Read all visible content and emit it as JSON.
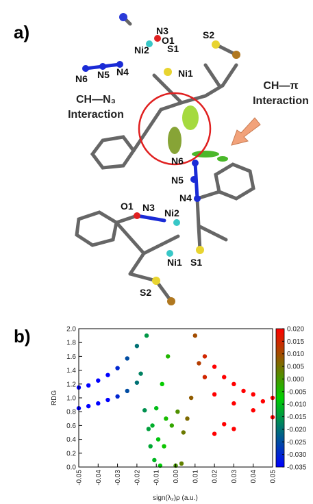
{
  "panel_a": {
    "label": "a)",
    "atom_labels_top": [
      "N3",
      "O1",
      "Ni2",
      "S1",
      "S2",
      "N6",
      "N5",
      "N4",
      "Ni1"
    ],
    "atom_labels_bottom": [
      "N6",
      "N5",
      "N4",
      "O1",
      "N3",
      "Ni2",
      "Ni1",
      "S1",
      "S2"
    ],
    "annotation_ch_n3": [
      "CH—N₃",
      "Interaction"
    ],
    "annotation_ch_pi": [
      "CH—π",
      "Interaction"
    ]
  },
  "panel_b": {
    "label": "b)"
  },
  "chart_data": {
    "type": "scatter",
    "x_label": "sign(λ₂)ρ (a.u.)",
    "y_label": "RDG",
    "xlim": [
      -0.05,
      0.05
    ],
    "ylim": [
      0,
      2
    ],
    "xticks": [
      -0.05,
      -0.04,
      -0.03,
      -0.02,
      -0.01,
      {
        "value": 0,
        "label": "0.00"
      },
      0.01,
      0.02,
      0.03,
      0.04,
      0.05
    ],
    "yticks": [
      {
        "value": 0,
        "label": "0.0"
      },
      0.2,
      0.4,
      0.6,
      0.8,
      {
        "value": 1,
        "label": "1.0"
      },
      1.2,
      1.4,
      1.6,
      1.8,
      {
        "value": 2,
        "label": "2.0"
      }
    ],
    "colorbar": {
      "lim": [
        -0.035,
        0.02
      ],
      "ticks": [
        {
          "value": 0.02,
          "label": "0.020"
        },
        0.015,
        {
          "value": 0.01,
          "label": "0.010"
        },
        0.005,
        {
          "value": 0,
          "label": "0.000"
        },
        -0.005,
        {
          "value": -0.01,
          "label": "-0.010"
        },
        -0.015,
        {
          "value": -0.02,
          "label": "-0.020"
        },
        -0.025,
        {
          "value": -0.03,
          "label": "-0.030"
        },
        -0.035
      ],
      "colorscale": [
        "#0000ff",
        "#00d000",
        "#ff0000"
      ]
    },
    "x": [
      -0.05,
      -0.05,
      -0.045,
      -0.045,
      -0.04,
      -0.04,
      -0.035,
      -0.035,
      -0.03,
      -0.03,
      -0.025,
      -0.025,
      -0.02,
      -0.02,
      -0.018,
      -0.016,
      -0.015,
      -0.014,
      -0.013,
      -0.012,
      -0.011,
      -0.01,
      -0.009,
      -0.008,
      -0.007,
      -0.006,
      -0.005,
      -0.004,
      -0.002,
      0.0,
      0.001,
      0.003,
      0.004,
      0.006,
      0.008,
      0.01,
      0.012,
      0.015,
      0.015,
      0.02,
      0.02,
      0.02,
      0.025,
      0.025,
      0.03,
      0.03,
      0.03,
      0.035,
      0.04,
      0.04,
      0.045,
      0.05,
      0.05
    ],
    "y": [
      0.85,
      1.15,
      0.88,
      1.18,
      0.92,
      1.25,
      0.97,
      1.33,
      1.02,
      1.43,
      1.1,
      1.57,
      1.22,
      1.75,
      1.35,
      0.82,
      1.9,
      0.55,
      0.3,
      0.6,
      0.1,
      0.85,
      0.4,
      0.02,
      1.2,
      0.3,
      0.7,
      1.6,
      0.6,
      0.02,
      0.8,
      0.05,
      0.5,
      0.7,
      1.0,
      1.9,
      1.5,
      1.6,
      1.3,
      1.45,
      1.05,
      0.48,
      1.3,
      0.62,
      1.2,
      0.92,
      0.55,
      1.1,
      1.05,
      0.82,
      0.95,
      1.0,
      0.72
    ]
  }
}
